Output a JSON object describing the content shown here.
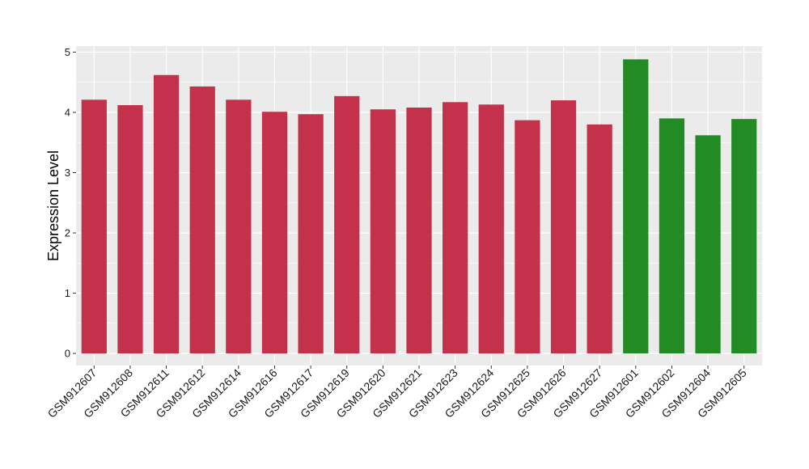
{
  "chart_data": {
    "type": "bar",
    "categories": [
      "GSM912607",
      "GSM912608",
      "GSM912611",
      "GSM912612",
      "GSM912614",
      "GSM912616",
      "GSM912617",
      "GSM912619",
      "GSM912620",
      "GSM912621",
      "GSM912623",
      "GSM912624",
      "GSM912625",
      "GSM912626",
      "GSM912627",
      "GSM912601",
      "GSM912602",
      "GSM912604",
      "GSM912605"
    ],
    "values": [
      4.21,
      4.12,
      4.62,
      4.43,
      4.21,
      4.01,
      3.97,
      4.27,
      4.05,
      4.08,
      4.17,
      4.13,
      3.87,
      4.2,
      3.8,
      4.88,
      3.9,
      3.62,
      3.89
    ],
    "colors": [
      "#c3314a",
      "#c3314a",
      "#c3314a",
      "#c3314a",
      "#c3314a",
      "#c3314a",
      "#c3314a",
      "#c3314a",
      "#c3314a",
      "#c3314a",
      "#c3314a",
      "#c3314a",
      "#c3314a",
      "#c3314a",
      "#c3314a",
      "#238b23",
      "#238b23",
      "#238b23",
      "#238b23"
    ],
    "title": "",
    "xlabel": "",
    "ylabel": "Expression Level",
    "ylim": [
      -0.2,
      5.1
    ],
    "yticks": [
      0,
      1,
      2,
      3,
      4,
      5
    ],
    "grid": true,
    "legend": "none",
    "panel_background": "#ebebeb",
    "grid_color": "#ffffff"
  }
}
